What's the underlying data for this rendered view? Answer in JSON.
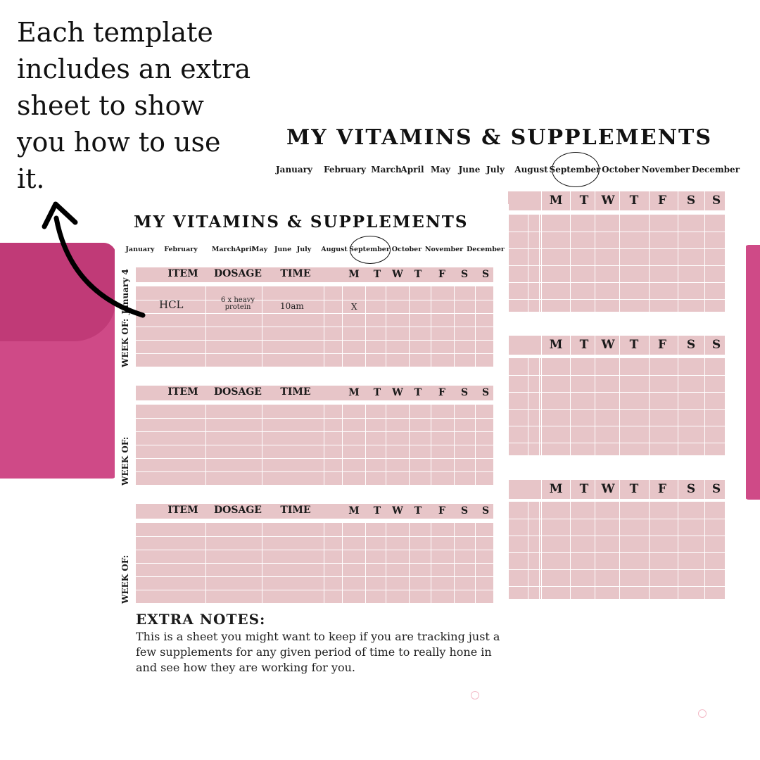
{
  "caption": "Each template includes an extra sheet to show you how to use it.",
  "back_sheet": {
    "title": "MY VITAMINS & SUPPLEMENTS",
    "months": [
      "January",
      "February",
      "March",
      "April",
      "May",
      "June",
      "July",
      "August",
      "September",
      "October",
      "November",
      "December"
    ],
    "selected_month": "September",
    "days": [
      "M",
      "T",
      "W",
      "T",
      "F",
      "S",
      "S"
    ]
  },
  "front_sheet": {
    "title": "MY VITAMINS & SUPPLEMENTS",
    "months": [
      "January",
      "February",
      "March",
      "April",
      "May",
      "June",
      "July",
      "August",
      "September",
      "October",
      "November",
      "December"
    ],
    "selected_month": "September",
    "columns": [
      "ITEM",
      "DOSAGE",
      "TIME"
    ],
    "days": [
      "M",
      "T",
      "W",
      "T",
      "F",
      "S",
      "S"
    ],
    "weeks": [
      {
        "week_of_label": "WEEK OF:",
        "week_of_value": "January 4",
        "entry": {
          "item": "HCL",
          "dosage": "6 x heavy protein",
          "dosage_line1": "6 x heavy",
          "dosage_line2": "protein",
          "time": "10am",
          "monday": "X"
        }
      },
      {
        "week_of_label": "WEEK OF:"
      },
      {
        "week_of_label": "WEEK OF:"
      }
    ],
    "notes_title": "EXTRA NOTES:",
    "notes_body": "This is a sheet you might want to keep if you are tracking just a few supplements for any given period of time to really hone in and see how they are working for you."
  },
  "colors": {
    "magenta": "#cf4a87",
    "table_pink": "#e7c5c8",
    "arrow": "#000000"
  },
  "icons": [
    "curved-arrow-icon",
    "circle-highlight-icon",
    "watermark-logo-icon"
  ]
}
